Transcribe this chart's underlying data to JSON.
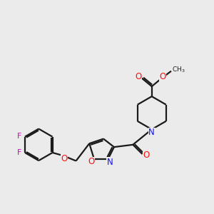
{
  "bg_color": "#ebebeb",
  "bond_color": "#1a1a1a",
  "N_color": "#1010ff",
  "O_color": "#ff1010",
  "F_color": "#cc00cc",
  "line_width": 1.6,
  "fig_size": [
    3.0,
    3.0
  ],
  "dpi": 100,
  "xlim": [
    -9,
    9
  ],
  "ylim": [
    -7,
    7
  ]
}
